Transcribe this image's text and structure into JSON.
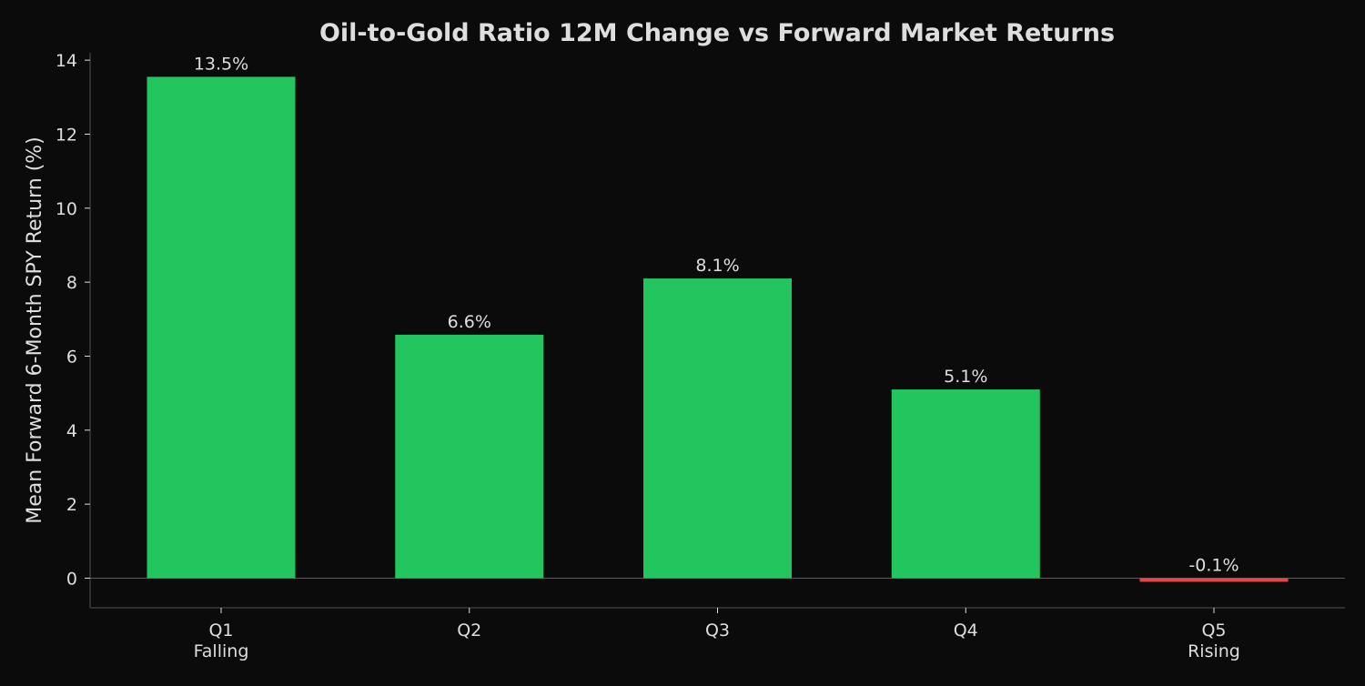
{
  "chart_data": {
    "type": "bar",
    "title": "Oil-to-Gold Ratio 12M Change vs Forward Market Returns",
    "xlabel": "",
    "ylabel": "Mean Forward 6-Month SPY Return (%)",
    "categories": [
      "Q1\nFalling",
      "Q2",
      "Q3",
      "Q4",
      "Q5\nRising"
    ],
    "values": [
      13.55,
      6.58,
      8.1,
      5.1,
      -0.08
    ],
    "value_labels": [
      "13.5%",
      "6.6%",
      "8.1%",
      "5.1%",
      "-0.1%"
    ],
    "y_ticks": [
      0,
      2,
      4,
      6,
      8,
      10,
      12,
      14
    ],
    "ylim": [
      -0.8,
      14.2
    ],
    "grid": false,
    "legend": "none"
  },
  "colors": {
    "background": "#0b0b0b",
    "text": "#dedede",
    "axis": "#3a3a3a",
    "positive_bar": "#22c55e",
    "negative_bar": "#e04848"
  }
}
